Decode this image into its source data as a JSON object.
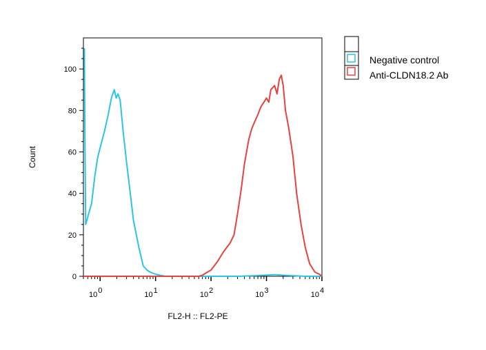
{
  "chart_data": {
    "type": "line",
    "xlabel": "FL2-H :: FL2-PE",
    "ylabel": "Count",
    "x_scale": "log",
    "xlim": [
      0.5,
      10000
    ],
    "ylim": [
      0,
      115
    ],
    "y_ticks": [
      0,
      20,
      40,
      60,
      80,
      100
    ],
    "x_ticks": [
      {
        "value": 1,
        "base": "10",
        "exp": "0"
      },
      {
        "value": 10,
        "base": "10",
        "exp": "1"
      },
      {
        "value": 100,
        "base": "10",
        "exp": "2"
      },
      {
        "value": 1000,
        "base": "10",
        "exp": "3"
      },
      {
        "value": 10000,
        "base": "10",
        "exp": "4"
      }
    ],
    "legend_position": "right, outside plot",
    "series": [
      {
        "name": "Negative control",
        "color": "#29c5e6",
        "points": [
          [
            0.52,
            110
          ],
          [
            0.53,
            75
          ],
          [
            0.55,
            25
          ],
          [
            0.62,
            30
          ],
          [
            0.7,
            35
          ],
          [
            0.8,
            48
          ],
          [
            0.9,
            57
          ],
          [
            1.0,
            62
          ],
          [
            1.2,
            70
          ],
          [
            1.4,
            78
          ],
          [
            1.6,
            86
          ],
          [
            1.8,
            90
          ],
          [
            1.95,
            86
          ],
          [
            2.1,
            88
          ],
          [
            2.3,
            85
          ],
          [
            2.6,
            70
          ],
          [
            3.0,
            55
          ],
          [
            3.5,
            40
          ],
          [
            4.0,
            27
          ],
          [
            5.0,
            14
          ],
          [
            6.0,
            5
          ],
          [
            7.0,
            3
          ],
          [
            8.0,
            2
          ],
          [
            10.0,
            1
          ],
          [
            12.0,
            0.5
          ],
          [
            15.0,
            0
          ],
          [
            300,
            0
          ],
          [
            600,
            0.3
          ],
          [
            900,
            0.5
          ],
          [
            1400,
            0.8
          ],
          [
            2000,
            0.5
          ],
          [
            3000,
            0.3
          ],
          [
            5000,
            0
          ],
          [
            10000,
            0
          ]
        ]
      },
      {
        "name": "Anti-CLDN18.2 Ab",
        "color": "#e8403f",
        "points": [
          [
            0.5,
            0
          ],
          [
            60,
            0
          ],
          [
            70,
            0.5
          ],
          [
            80,
            1.5
          ],
          [
            100,
            3
          ],
          [
            130,
            7
          ],
          [
            170,
            12
          ],
          [
            220,
            16
          ],
          [
            260,
            20
          ],
          [
            300,
            30
          ],
          [
            350,
            42
          ],
          [
            400,
            54
          ],
          [
            430,
            59
          ],
          [
            480,
            66
          ],
          [
            540,
            71
          ],
          [
            600,
            74
          ],
          [
            700,
            78
          ],
          [
            800,
            82
          ],
          [
            900,
            84
          ],
          [
            1000,
            86
          ],
          [
            1100,
            84
          ],
          [
            1200,
            90
          ],
          [
            1400,
            92
          ],
          [
            1550,
            88
          ],
          [
            1700,
            95
          ],
          [
            1850,
            97
          ],
          [
            2000,
            92
          ],
          [
            2200,
            80
          ],
          [
            2500,
            72
          ],
          [
            3000,
            58
          ],
          [
            3500,
            40
          ],
          [
            4200,
            25
          ],
          [
            5000,
            14
          ],
          [
            6000,
            6
          ],
          [
            7500,
            2
          ],
          [
            9000,
            1
          ],
          [
            10000,
            0
          ]
        ]
      }
    ]
  }
}
